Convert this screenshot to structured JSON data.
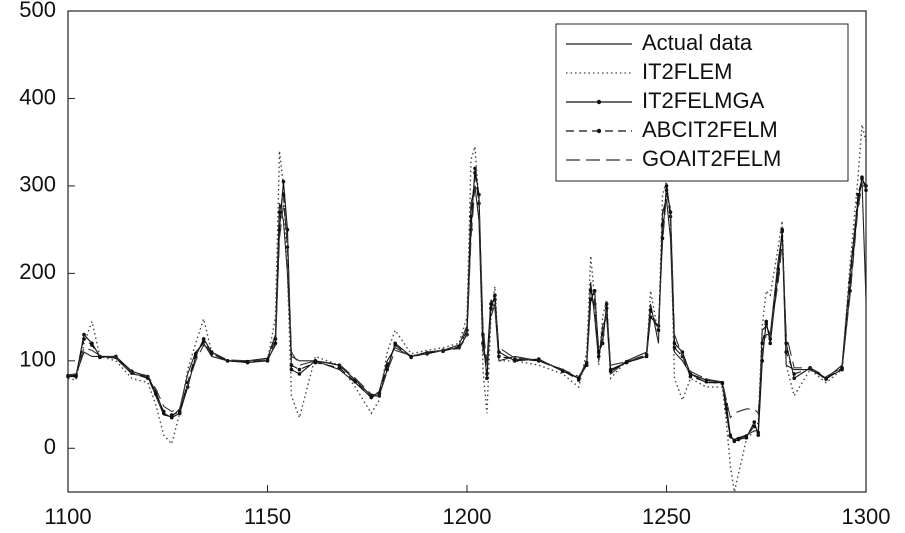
{
  "chart_data": {
    "type": "line",
    "xlim": [
      1100,
      1300
    ],
    "xticks": [
      1100,
      1150,
      1200,
      1250,
      1300
    ],
    "ylim": [
      -50,
      500
    ],
    "yticks": [
      0,
      100,
      200,
      300,
      400,
      500
    ],
    "grid": false,
    "legend": "top-right",
    "x": [
      1100,
      1102,
      1104,
      1106,
      1108,
      1112,
      1116,
      1120,
      1122,
      1124,
      1126,
      1128,
      1130,
      1132,
      1134,
      1136,
      1140,
      1145,
      1150,
      1152,
      1153,
      1154,
      1155,
      1156,
      1158,
      1162,
      1168,
      1172,
      1176,
      1178,
      1180,
      1182,
      1186,
      1190,
      1194,
      1198,
      1200,
      1201,
      1202,
      1203,
      1204,
      1205,
      1206,
      1207,
      1208,
      1212,
      1218,
      1224,
      1228,
      1230,
      1231,
      1232,
      1233,
      1234,
      1235,
      1236,
      1240,
      1245,
      1246,
      1248,
      1249,
      1250,
      1251,
      1252,
      1254,
      1256,
      1260,
      1264,
      1265,
      1266,
      1267,
      1268,
      1270,
      1272,
      1273,
      1274,
      1275,
      1276,
      1278,
      1279,
      1280,
      1282,
      1286,
      1290,
      1294,
      1296,
      1298,
      1299,
      1300
    ],
    "series": [
      {
        "name": "Actual data",
        "color": "#222222",
        "dash": "solid",
        "marker": false,
        "values": [
          82,
          84,
          110,
          105,
          105,
          103,
          85,
          82,
          60,
          38,
          36,
          45,
          85,
          110,
          120,
          105,
          100,
          100,
          103,
          130,
          280,
          260,
          200,
          105,
          100,
          100,
          90,
          75,
          58,
          65,
          100,
          115,
          105,
          110,
          112,
          118,
          140,
          280,
          300,
          260,
          110,
          100,
          170,
          160,
          100,
          105,
          100,
          90,
          80,
          100,
          190,
          150,
          100,
          140,
          150,
          85,
          100,
          110,
          165,
          120,
          270,
          285,
          240,
          110,
          100,
          85,
          75,
          75,
          40,
          12,
          10,
          12,
          15,
          20,
          20,
          135,
          140,
          130,
          215,
          245,
          95,
          90,
          90,
          80,
          95,
          200,
          285,
          305,
          170
        ]
      },
      {
        "name": "IT2FLEM",
        "color": "#444444",
        "dash": "dotted",
        "marker": false,
        "values": [
          80,
          78,
          120,
          145,
          105,
          100,
          80,
          75,
          50,
          15,
          5,
          40,
          90,
          120,
          148,
          110,
          100,
          100,
          100,
          150,
          340,
          300,
          200,
          60,
          35,
          105,
          95,
          70,
          40,
          55,
          110,
          135,
          108,
          112,
          115,
          120,
          150,
          330,
          345,
          280,
          90,
          40,
          150,
          185,
          100,
          100,
          95,
          85,
          70,
          110,
          220,
          170,
          95,
          150,
          170,
          80,
          100,
          105,
          180,
          130,
          290,
          305,
          260,
          80,
          55,
          80,
          70,
          70,
          30,
          -20,
          -50,
          -30,
          10,
          20,
          30,
          140,
          180,
          175,
          230,
          260,
          95,
          60,
          90,
          75,
          90,
          210,
          310,
          370,
          350
        ]
      },
      {
        "name": "IT2FELMGA",
        "color": "#111111",
        "dash": "solid",
        "marker": true,
        "values": [
          82,
          82,
          130,
          120,
          105,
          105,
          88,
          82,
          65,
          40,
          35,
          40,
          70,
          105,
          125,
          110,
          100,
          98,
          100,
          120,
          250,
          305,
          250,
          90,
          85,
          100,
          95,
          78,
          60,
          60,
          90,
          120,
          105,
          108,
          112,
          115,
          130,
          250,
          320,
          290,
          130,
          80,
          160,
          175,
          110,
          100,
          102,
          88,
          80,
          95,
          170,
          180,
          110,
          120,
          165,
          90,
          98,
          105,
          150,
          140,
          240,
          300,
          270,
          120,
          110,
          85,
          78,
          75,
          50,
          15,
          8,
          10,
          12,
          30,
          15,
          100,
          145,
          120,
          200,
          250,
          120,
          80,
          92,
          80,
          90,
          180,
          280,
          310,
          295
        ]
      },
      {
        "name": "ABCIT2FELM",
        "color": "#111111",
        "dash": "dashed",
        "marker": true,
        "values": [
          83,
          83,
          125,
          118,
          104,
          104,
          86,
          80,
          62,
          42,
          38,
          42,
          75,
          108,
          122,
          108,
          100,
          99,
          101,
          125,
          270,
          290,
          230,
          95,
          90,
          98,
          92,
          76,
          58,
          62,
          95,
          118,
          104,
          109,
          111,
          116,
          135,
          265,
          315,
          280,
          120,
          85,
          165,
          170,
          105,
          102,
          100,
          89,
          78,
          98,
          180,
          165,
          105,
          130,
          160,
          88,
          99,
          107,
          158,
          135,
          255,
          295,
          265,
          115,
          105,
          82,
          76,
          74,
          45,
          14,
          9,
          11,
          14,
          25,
          18,
          120,
          142,
          125,
          205,
          248,
          110,
          85,
          91,
          79,
          92,
          190,
          290,
          308,
          300
        ]
      },
      {
        "name": "GOAIT2FELM",
        "color": "#333333",
        "dash": "longdash",
        "marker": false,
        "values": [
          84,
          85,
          115,
          112,
          106,
          104,
          87,
          83,
          68,
          48,
          42,
          46,
          72,
          100,
          118,
          110,
          101,
          100,
          101,
          118,
          240,
          280,
          240,
          110,
          95,
          100,
          96,
          80,
          62,
          60,
          88,
          112,
          106,
          108,
          112,
          114,
          128,
          240,
          300,
          285,
          140,
          95,
          150,
          165,
          115,
          103,
          101,
          90,
          82,
          96,
          165,
          170,
          115,
          125,
          155,
          95,
          99,
          106,
          148,
          138,
          235,
          290,
          275,
          130,
          105,
          88,
          79,
          76,
          55,
          35,
          40,
          42,
          45,
          45,
          40,
          110,
          130,
          130,
          190,
          235,
          130,
          92,
          92,
          82,
          92,
          175,
          275,
          300,
          300
        ]
      }
    ]
  }
}
